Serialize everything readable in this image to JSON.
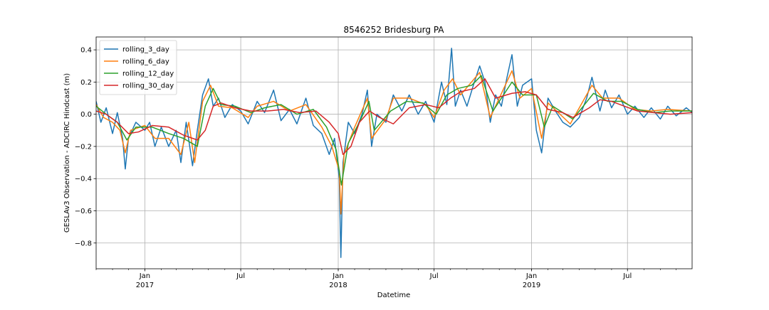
{
  "chart_data": {
    "type": "line",
    "title": "8546252 Bridesburg PA",
    "xlabel": "Datetime",
    "ylabel": "GESLAv3 Observation - ADCIRC Hindcast (m)",
    "xlim": [
      "2016-10-01",
      "2019-10-31"
    ],
    "ylim": [
      -0.96,
      0.48
    ],
    "grid": true,
    "legend_position": "top-left",
    "yticks": [
      {
        "value": 0.4,
        "label": "0.4"
      },
      {
        "value": 0.2,
        "label": "0.2"
      },
      {
        "value": 0.0,
        "label": "0.0"
      },
      {
        "value": -0.2,
        "label": "−0.2"
      },
      {
        "value": -0.4,
        "label": "−0.4"
      },
      {
        "value": -0.6,
        "label": "−0.6"
      },
      {
        "value": -0.8,
        "label": "−0.8"
      }
    ],
    "xticks_major": [
      {
        "date": "2017-01-01",
        "label": "Jan",
        "year": "2017"
      },
      {
        "date": "2017-07-01",
        "label": "Jul",
        "year": ""
      },
      {
        "date": "2018-01-01",
        "label": "Jan",
        "year": "2018"
      },
      {
        "date": "2018-07-01",
        "label": "Jul",
        "year": ""
      },
      {
        "date": "2019-01-01",
        "label": "Jan",
        "year": "2019"
      },
      {
        "date": "2019-07-01",
        "label": "Jul",
        "year": ""
      }
    ],
    "series": [
      {
        "name": "rolling_3_day",
        "color": "#1f77b4",
        "points": [
          [
            "2016-10-01",
            0.08
          ],
          [
            "2016-10-10",
            -0.05
          ],
          [
            "2016-10-20",
            0.04
          ],
          [
            "2016-11-01",
            -0.12
          ],
          [
            "2016-11-10",
            0.01
          ],
          [
            "2016-11-20",
            -0.15
          ],
          [
            "2016-11-25",
            -0.34
          ],
          [
            "2016-12-01",
            -0.15
          ],
          [
            "2016-12-15",
            -0.05
          ],
          [
            "2017-01-01",
            -0.1
          ],
          [
            "2017-01-10",
            -0.05
          ],
          [
            "2017-01-20",
            -0.2
          ],
          [
            "2017-02-01",
            -0.08
          ],
          [
            "2017-02-15",
            -0.2
          ],
          [
            "2017-03-01",
            -0.1
          ],
          [
            "2017-03-10",
            -0.3
          ],
          [
            "2017-03-20",
            -0.05
          ],
          [
            "2017-04-01",
            -0.32
          ],
          [
            "2017-04-10",
            -0.1
          ],
          [
            "2017-04-20",
            0.12
          ],
          [
            "2017-05-01",
            0.22
          ],
          [
            "2017-05-10",
            0.05
          ],
          [
            "2017-05-20",
            0.1
          ],
          [
            "2017-06-01",
            -0.02
          ],
          [
            "2017-06-15",
            0.06
          ],
          [
            "2017-07-01",
            0.02
          ],
          [
            "2017-07-15",
            -0.06
          ],
          [
            "2017-08-01",
            0.08
          ],
          [
            "2017-08-15",
            0.01
          ],
          [
            "2017-09-01",
            0.15
          ],
          [
            "2017-09-15",
            -0.04
          ],
          [
            "2017-10-01",
            0.03
          ],
          [
            "2017-10-15",
            -0.06
          ],
          [
            "2017-11-01",
            0.1
          ],
          [
            "2017-11-15",
            -0.07
          ],
          [
            "2017-12-01",
            -0.12
          ],
          [
            "2017-12-15",
            -0.25
          ],
          [
            "2017-12-25",
            -0.15
          ],
          [
            "2018-01-03",
            -0.4
          ],
          [
            "2018-01-06",
            -0.89
          ],
          [
            "2018-01-10",
            -0.3
          ],
          [
            "2018-01-20",
            -0.05
          ],
          [
            "2018-02-01",
            -0.12
          ],
          [
            "2018-02-15",
            0.0
          ],
          [
            "2018-02-25",
            0.15
          ],
          [
            "2018-03-05",
            -0.2
          ],
          [
            "2018-03-15",
            0.0
          ],
          [
            "2018-04-01",
            -0.05
          ],
          [
            "2018-04-15",
            0.12
          ],
          [
            "2018-05-01",
            0.02
          ],
          [
            "2018-05-15",
            0.12
          ],
          [
            "2018-06-01",
            0.0
          ],
          [
            "2018-06-15",
            0.08
          ],
          [
            "2018-07-01",
            -0.05
          ],
          [
            "2018-07-15",
            0.2
          ],
          [
            "2018-07-25",
            0.06
          ],
          [
            "2018-08-03",
            0.41
          ],
          [
            "2018-08-10",
            0.05
          ],
          [
            "2018-08-20",
            0.15
          ],
          [
            "2018-09-01",
            0.05
          ],
          [
            "2018-09-15",
            0.2
          ],
          [
            "2018-09-25",
            0.3
          ],
          [
            "2018-10-05",
            0.2
          ],
          [
            "2018-10-15",
            -0.05
          ],
          [
            "2018-10-25",
            0.12
          ],
          [
            "2018-11-05",
            0.05
          ],
          [
            "2018-11-15",
            0.22
          ],
          [
            "2018-11-25",
            0.37
          ],
          [
            "2018-12-05",
            0.05
          ],
          [
            "2018-12-15",
            0.18
          ],
          [
            "2019-01-01",
            0.22
          ],
          [
            "2019-01-10",
            -0.1
          ],
          [
            "2019-01-20",
            -0.24
          ],
          [
            "2019-02-01",
            0.1
          ],
          [
            "2019-02-15",
            0.02
          ],
          [
            "2019-03-01",
            -0.05
          ],
          [
            "2019-03-15",
            -0.08
          ],
          [
            "2019-04-01",
            -0.02
          ],
          [
            "2019-04-15",
            0.1
          ],
          [
            "2019-04-25",
            0.23
          ],
          [
            "2019-05-10",
            0.02
          ],
          [
            "2019-05-20",
            0.15
          ],
          [
            "2019-06-01",
            0.04
          ],
          [
            "2019-06-15",
            0.12
          ],
          [
            "2019-07-01",
            0.0
          ],
          [
            "2019-07-15",
            0.05
          ],
          [
            "2019-08-01",
            -0.02
          ],
          [
            "2019-08-15",
            0.04
          ],
          [
            "2019-09-01",
            -0.03
          ],
          [
            "2019-09-15",
            0.05
          ],
          [
            "2019-10-01",
            -0.01
          ],
          [
            "2019-10-20",
            0.04
          ],
          [
            "2019-10-31",
            0.01
          ]
        ]
      },
      {
        "name": "rolling_6_day",
        "color": "#ff7f0e",
        "points": [
          [
            "2016-10-01",
            0.06
          ],
          [
            "2016-10-15",
            -0.02
          ],
          [
            "2016-11-01",
            -0.05
          ],
          [
            "2016-11-15",
            -0.1
          ],
          [
            "2016-11-25",
            -0.24
          ],
          [
            "2016-12-05",
            -0.1
          ],
          [
            "2017-01-01",
            -0.07
          ],
          [
            "2017-01-20",
            -0.15
          ],
          [
            "2017-02-15",
            -0.15
          ],
          [
            "2017-03-10",
            -0.25
          ],
          [
            "2017-03-25",
            -0.05
          ],
          [
            "2017-04-05",
            -0.3
          ],
          [
            "2017-04-20",
            0.08
          ],
          [
            "2017-05-05",
            0.18
          ],
          [
            "2017-05-20",
            0.05
          ],
          [
            "2017-06-15",
            0.04
          ],
          [
            "2017-07-15",
            -0.02
          ],
          [
            "2017-08-01",
            0.05
          ],
          [
            "2017-09-01",
            0.08
          ],
          [
            "2017-10-01",
            0.02
          ],
          [
            "2017-11-01",
            0.06
          ],
          [
            "2017-12-01",
            -0.08
          ],
          [
            "2017-12-20",
            -0.2
          ],
          [
            "2018-01-03",
            -0.35
          ],
          [
            "2018-01-06",
            -0.62
          ],
          [
            "2018-01-12",
            -0.25
          ],
          [
            "2018-02-01",
            -0.08
          ],
          [
            "2018-02-25",
            0.1
          ],
          [
            "2018-03-05",
            -0.15
          ],
          [
            "2018-04-01",
            -0.03
          ],
          [
            "2018-04-15",
            0.1
          ],
          [
            "2018-05-15",
            0.1
          ],
          [
            "2018-06-15",
            0.06
          ],
          [
            "2018-07-01",
            -0.02
          ],
          [
            "2018-07-20",
            0.15
          ],
          [
            "2018-08-05",
            0.22
          ],
          [
            "2018-08-20",
            0.12
          ],
          [
            "2018-09-25",
            0.26
          ],
          [
            "2018-10-15",
            -0.02
          ],
          [
            "2018-11-25",
            0.27
          ],
          [
            "2018-12-10",
            0.1
          ],
          [
            "2019-01-01",
            0.16
          ],
          [
            "2019-01-20",
            -0.15
          ],
          [
            "2019-02-01",
            0.07
          ],
          [
            "2019-03-15",
            -0.06
          ],
          [
            "2019-04-25",
            0.18
          ],
          [
            "2019-05-15",
            0.1
          ],
          [
            "2019-06-15",
            0.1
          ],
          [
            "2019-07-15",
            0.03
          ],
          [
            "2019-08-15",
            0.02
          ],
          [
            "2019-09-15",
            0.03
          ],
          [
            "2019-10-31",
            0.02
          ]
        ]
      },
      {
        "name": "rolling_12_day",
        "color": "#2ca02c",
        "points": [
          [
            "2016-10-01",
            0.05
          ],
          [
            "2016-10-20",
            0.0
          ],
          [
            "2016-11-10",
            -0.05
          ],
          [
            "2016-11-28",
            -0.16
          ],
          [
            "2016-12-15",
            -0.08
          ],
          [
            "2017-01-15",
            -0.08
          ],
          [
            "2017-02-15",
            -0.12
          ],
          [
            "2017-03-15",
            -0.15
          ],
          [
            "2017-04-10",
            -0.2
          ],
          [
            "2017-04-25",
            0.05
          ],
          [
            "2017-05-10",
            0.16
          ],
          [
            "2017-05-25",
            0.06
          ],
          [
            "2017-06-20",
            0.05
          ],
          [
            "2017-07-20",
            0.01
          ],
          [
            "2017-08-15",
            0.04
          ],
          [
            "2017-09-15",
            0.06
          ],
          [
            "2017-10-15",
            0.0
          ],
          [
            "2017-11-15",
            0.03
          ],
          [
            "2017-12-10",
            -0.08
          ],
          [
            "2017-12-28",
            -0.22
          ],
          [
            "2018-01-07",
            -0.44
          ],
          [
            "2018-01-20",
            -0.18
          ],
          [
            "2018-02-10",
            -0.05
          ],
          [
            "2018-02-28",
            0.08
          ],
          [
            "2018-03-10",
            -0.1
          ],
          [
            "2018-04-10",
            0.02
          ],
          [
            "2018-05-10",
            0.08
          ],
          [
            "2018-06-10",
            0.07
          ],
          [
            "2018-07-05",
            0.0
          ],
          [
            "2018-07-25",
            0.12
          ],
          [
            "2018-08-15",
            0.16
          ],
          [
            "2018-09-10",
            0.18
          ],
          [
            "2018-09-28",
            0.24
          ],
          [
            "2018-10-20",
            0.02
          ],
          [
            "2018-11-25",
            0.2
          ],
          [
            "2018-12-15",
            0.12
          ],
          [
            "2019-01-10",
            0.12
          ],
          [
            "2019-01-25",
            -0.08
          ],
          [
            "2019-02-10",
            0.05
          ],
          [
            "2019-03-20",
            -0.03
          ],
          [
            "2019-04-28",
            0.13
          ],
          [
            "2019-05-25",
            0.08
          ],
          [
            "2019-06-20",
            0.08
          ],
          [
            "2019-07-20",
            0.03
          ],
          [
            "2019-08-20",
            0.01
          ],
          [
            "2019-09-20",
            0.02
          ],
          [
            "2019-10-31",
            0.02
          ]
        ]
      },
      {
        "name": "rolling_30_day",
        "color": "#d62728",
        "points": [
          [
            "2016-10-01",
            0.02
          ],
          [
            "2016-10-20",
            0.0
          ],
          [
            "2016-11-10",
            -0.05
          ],
          [
            "2016-12-01",
            -0.12
          ],
          [
            "2016-12-20",
            -0.11
          ],
          [
            "2017-01-15",
            -0.07
          ],
          [
            "2017-02-15",
            -0.08
          ],
          [
            "2017-03-15",
            -0.13
          ],
          [
            "2017-04-10",
            -0.16
          ],
          [
            "2017-04-25",
            -0.1
          ],
          [
            "2017-05-10",
            0.05
          ],
          [
            "2017-05-25",
            0.07
          ],
          [
            "2017-06-20",
            0.04
          ],
          [
            "2017-07-20",
            0.02
          ],
          [
            "2017-08-20",
            0.02
          ],
          [
            "2017-09-20",
            0.03
          ],
          [
            "2017-10-20",
            0.01
          ],
          [
            "2017-11-20",
            0.02
          ],
          [
            "2017-12-15",
            -0.05
          ],
          [
            "2018-01-01",
            -0.12
          ],
          [
            "2018-01-10",
            -0.25
          ],
          [
            "2018-01-25",
            -0.2
          ],
          [
            "2018-02-10",
            -0.05
          ],
          [
            "2018-03-01",
            0.02
          ],
          [
            "2018-03-20",
            -0.02
          ],
          [
            "2018-04-15",
            -0.06
          ],
          [
            "2018-05-15",
            0.04
          ],
          [
            "2018-06-15",
            0.06
          ],
          [
            "2018-07-10",
            0.04
          ],
          [
            "2018-08-01",
            0.1
          ],
          [
            "2018-08-20",
            0.14
          ],
          [
            "2018-09-15",
            0.16
          ],
          [
            "2018-10-05",
            0.22
          ],
          [
            "2018-10-25",
            0.1
          ],
          [
            "2018-11-25",
            0.13
          ],
          [
            "2018-12-20",
            0.14
          ],
          [
            "2019-01-10",
            0.12
          ],
          [
            "2019-02-01",
            0.03
          ],
          [
            "2019-03-01",
            0.01
          ],
          [
            "2019-03-20",
            -0.02
          ],
          [
            "2019-04-20",
            0.04
          ],
          [
            "2019-05-10",
            0.09
          ],
          [
            "2019-06-01",
            0.08
          ],
          [
            "2019-06-25",
            0.05
          ],
          [
            "2019-07-20",
            0.02
          ],
          [
            "2019-08-20",
            0.01
          ],
          [
            "2019-09-20",
            0.0
          ],
          [
            "2019-10-31",
            0.01
          ]
        ]
      }
    ]
  }
}
